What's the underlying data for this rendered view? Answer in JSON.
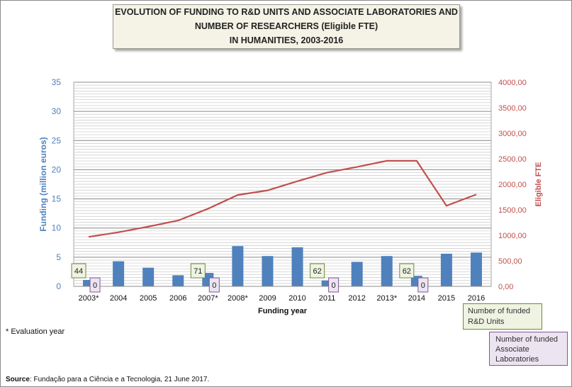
{
  "title_lines": [
    "EVOLUTION OF FUNDING TO R&D UNITS AND ASSOCIATE LABORATORIES AND",
    "NUMBER OF RESEARCHERS (Eligible FTE)",
    "IN HUMANITIES, 2003-2016"
  ],
  "footnote": "* Evaluation year",
  "source_label": "Source",
  "source_text": ": Fundação para a Ciência e a Tecnologia, 21 June 2017.",
  "legend": {
    "units": "Number of funded R&D Units",
    "labs": "Number of funded Associate Laboratories"
  },
  "colors": {
    "bars": "#4f81bd",
    "line": "#c0504d",
    "left_axis": "#4f81bd",
    "right_axis": "#c0504d",
    "units_box": "#eef3e2",
    "labs_box": "#ece4f1"
  },
  "chart_data": {
    "type": "bar",
    "categories": [
      "2003*",
      "2004",
      "2005",
      "2006",
      "2007*",
      "2008*",
      "2009",
      "2010",
      "2011",
      "2012",
      "2013*",
      "2014",
      "2015",
      "2016"
    ],
    "xlabel": "Funding year",
    "ylabel": "Funding (million euros)",
    "y2label": "Eligible FTE",
    "ylim": [
      0,
      35
    ],
    "y2lim": [
      0,
      4000
    ],
    "yticks": [
      "0",
      "5",
      "10",
      "15",
      "20",
      "25",
      "30",
      "35"
    ],
    "y2ticks": [
      "0,00",
      "500,00",
      "1000,00",
      "1500,00",
      "2000,00",
      "2500,00",
      "3000,00",
      "3500,00",
      "4000,00"
    ],
    "grid": true,
    "series": [
      {
        "type": "bar",
        "axis": "left",
        "values": [
          1.1,
          4.3,
          3.2,
          1.9,
          2.3,
          6.9,
          5.2,
          6.7,
          1.0,
          4.2,
          5.2,
          1.8,
          5.6,
          5.8
        ]
      },
      {
        "type": "line",
        "axis": "right",
        "values": [
          970,
          1060,
          1170,
          1290,
          1520,
          1790,
          1880,
          2060,
          2230,
          2340,
          2460,
          2460,
          1580,
          1800
        ]
      }
    ],
    "annotations": [
      {
        "category": "2003*",
        "units": "44",
        "labs": "0"
      },
      {
        "category": "2007*",
        "units": "71",
        "labs": "0"
      },
      {
        "category": "2011",
        "units": "62",
        "labs": "0"
      },
      {
        "category": "2014",
        "units": "62",
        "labs": "0"
      }
    ]
  }
}
